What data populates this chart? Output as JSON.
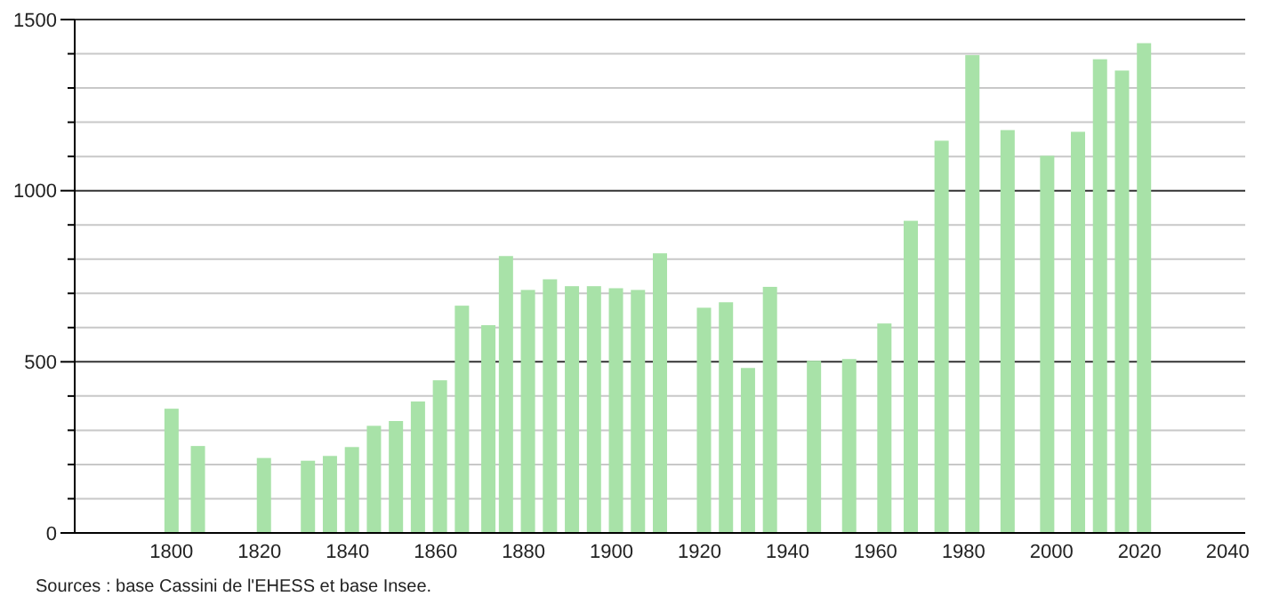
{
  "chart_data": {
    "type": "bar",
    "x": [
      1800,
      1806,
      1821,
      1831,
      1836,
      1841,
      1846,
      1851,
      1856,
      1861,
      1866,
      1872,
      1876,
      1881,
      1886,
      1891,
      1896,
      1901,
      1906,
      1911,
      1921,
      1926,
      1931,
      1936,
      1946,
      1954,
      1962,
      1968,
      1975,
      1982,
      1990,
      1999,
      2006,
      2011,
      2016,
      2021
    ],
    "values": [
      363,
      254,
      219,
      211,
      225,
      251,
      313,
      327,
      384,
      446,
      664,
      607,
      809,
      710,
      741,
      721,
      721,
      715,
      710,
      817,
      658,
      674,
      482,
      719,
      503,
      508,
      612,
      912,
      1146,
      1396,
      1177,
      1102,
      1172,
      1384,
      1351,
      1431
    ],
    "color": "#a8e2a8",
    "xlim": [
      1778,
      2044
    ],
    "xticks": [
      1800,
      1820,
      1840,
      1860,
      1880,
      1900,
      1920,
      1940,
      1960,
      1980,
      2000,
      2020,
      2040
    ],
    "ylim": [
      0,
      1500
    ],
    "yticks": [
      0,
      {
        "value": 100,
        "label": null
      },
      {
        "value": 200,
        "label": null
      },
      {
        "value": 300,
        "label": null
      },
      {
        "value": 400,
        "label": null
      },
      500,
      {
        "value": 600,
        "label": null
      },
      {
        "value": 700,
        "label": null
      },
      {
        "value": 800,
        "label": null
      },
      {
        "value": 900,
        "label": null
      },
      1000,
      {
        "value": 1100,
        "label": null
      },
      {
        "value": 1200,
        "label": null
      },
      {
        "value": 1300,
        "label": null
      },
      {
        "value": 1400,
        "label": null
      },
      1500
    ],
    "grid": "y",
    "annotations": [
      "Sources : base Cassini de l'EHESS et base Insee."
    ]
  }
}
